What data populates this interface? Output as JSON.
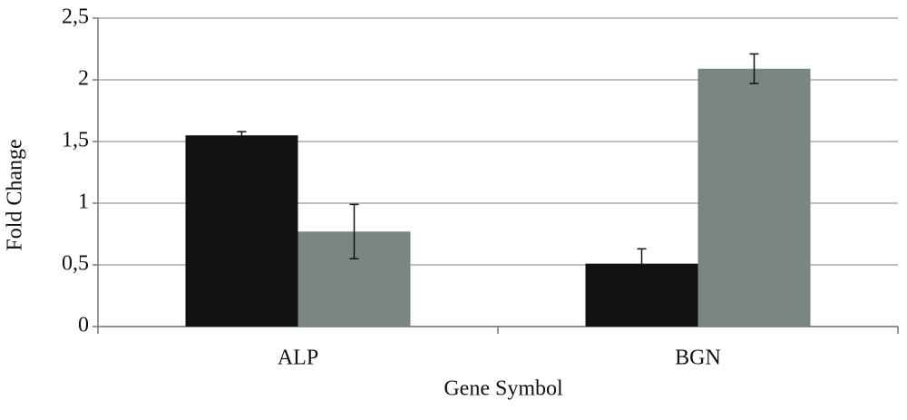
{
  "chart_data": {
    "type": "bar",
    "x_label": "Gene Symbol",
    "y_label": "Fold Change",
    "categories": [
      "ALP",
      "BGN"
    ],
    "series": [
      {
        "color": "#111111",
        "values": [
          1.55,
          0.51
        ],
        "errors": [
          0.03,
          0.12
        ]
      },
      {
        "color": "#7a8584",
        "values": [
          0.77,
          2.09
        ],
        "errors": [
          0.22,
          0.12
        ]
      }
    ],
    "ylim": [
      0,
      2.5
    ],
    "yticks": [
      0,
      {
        "value": 0.5,
        "label": "0,5"
      },
      1,
      {
        "value": 1.5,
        "label": "1,5"
      },
      2,
      {
        "value": 2.5,
        "label": "2,5"
      }
    ],
    "grid": true
  }
}
